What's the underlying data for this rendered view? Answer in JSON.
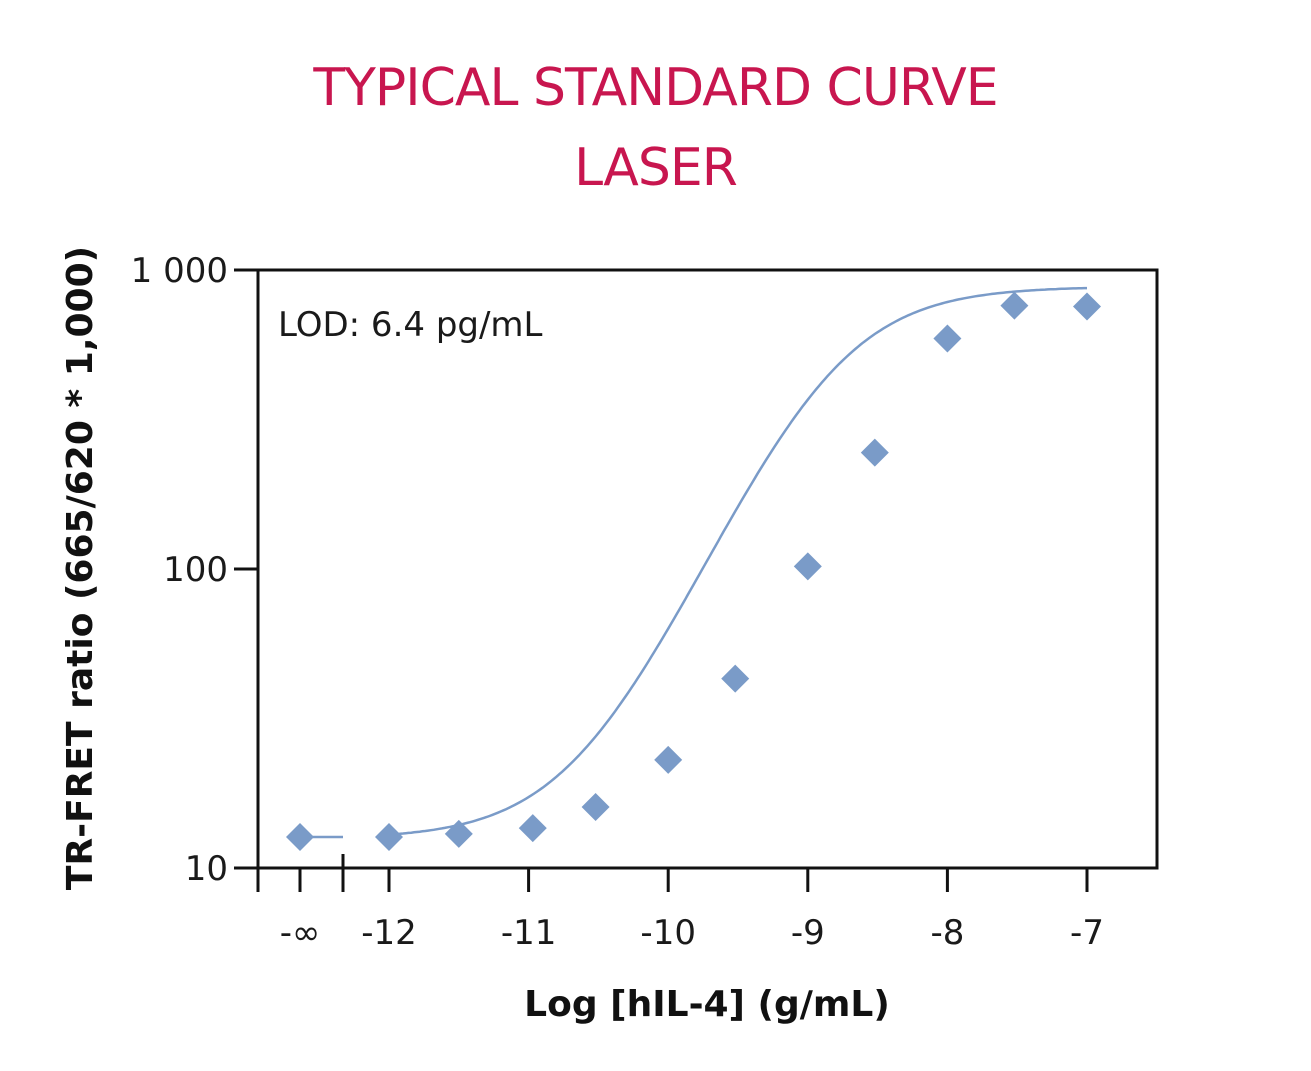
{
  "chart_data": {
    "type": "scatter",
    "title": "TYPICAL STANDARD CURVE",
    "subtitle": "LASER",
    "xlabel": "Log [hIL-4] (g/mL)",
    "ylabel": "TR-FRET ratio (665/620 * 1,000)",
    "annotation": "LOD: 6.4 pg/mL",
    "yscale": "log",
    "ylim": [
      10,
      1000
    ],
    "xlim": [
      -12.95,
      -6.5
    ],
    "x_ticks": [
      {
        "value": "-inf",
        "label": "-∞"
      },
      {
        "value": -12,
        "label": "-12"
      },
      {
        "value": -11,
        "label": "-11"
      },
      {
        "value": -10,
        "label": "-10"
      },
      {
        "value": -9,
        "label": "-9"
      },
      {
        "value": -8,
        "label": "-8"
      },
      {
        "value": -7,
        "label": "-7"
      }
    ],
    "y_ticks": [
      {
        "value": 10,
        "label": "10"
      },
      {
        "value": 100,
        "label": "100"
      },
      {
        "value": 1000,
        "label": "1 000"
      }
    ],
    "axis_break": "between -∞ and -12",
    "marker": "diamond",
    "color": "#7a9bc8",
    "blank_point": {
      "x": "-inf",
      "y": 12.7
    },
    "points": [
      {
        "x": -12.0,
        "y": 12.7
      },
      {
        "x": -11.5,
        "y": 13.0
      },
      {
        "x": -10.97,
        "y": 13.6
      },
      {
        "x": -10.52,
        "y": 16.0
      },
      {
        "x": -10.0,
        "y": 23.0
      },
      {
        "x": -9.52,
        "y": 43.0
      },
      {
        "x": -9.0,
        "y": 102.0
      },
      {
        "x": -8.52,
        "y": 245.0
      },
      {
        "x": -8.0,
        "y": 590.0
      },
      {
        "x": -7.52,
        "y": 760.0
      },
      {
        "x": -7.0,
        "y": 755.0
      }
    ],
    "fit": {
      "model": "4PL",
      "bottom": 12.5,
      "top": 880,
      "log_ec50": -8.85,
      "hill": 1.05
    },
    "grid": false,
    "legend": "none"
  }
}
